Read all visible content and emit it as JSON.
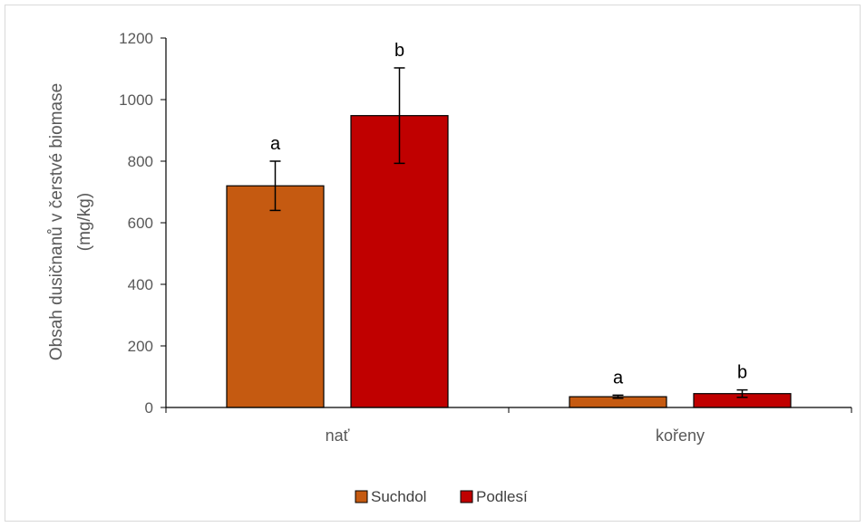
{
  "chart_data": {
    "type": "bar",
    "title": "",
    "xlabel": "",
    "ylabel_lines": [
      "Obsah dusičnanů v čerstvé biomase",
      "(mg/kg)"
    ],
    "categories": [
      "nať",
      "kořeny"
    ],
    "ylim": [
      0,
      1200
    ],
    "yticks": [
      0,
      200,
      400,
      600,
      800,
      1000,
      1200
    ],
    "grid": false,
    "legend_position": "bottom",
    "series": [
      {
        "name": "Suchdol",
        "color": "#c55a11",
        "values": [
          720,
          35
        ],
        "errors": [
          80,
          5
        ],
        "labels": [
          "a",
          "a"
        ]
      },
      {
        "name": "Podlesí",
        "color": "#c00000",
        "values": [
          948,
          45
        ],
        "errors": [
          155,
          12
        ],
        "labels": [
          "b",
          "b"
        ]
      }
    ]
  }
}
